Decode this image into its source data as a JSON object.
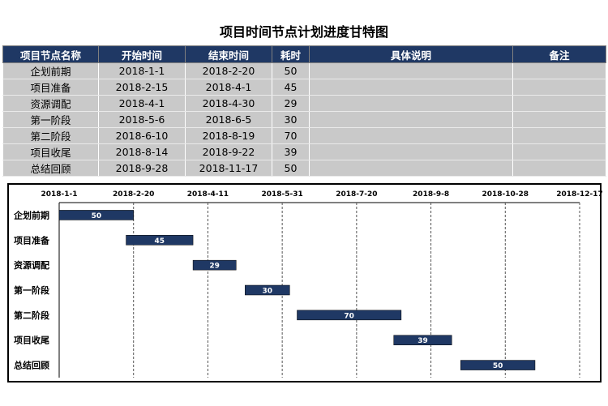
{
  "title": "项目时间节点计划进度甘特图",
  "table": {
    "headers": [
      "项目节点名称",
      "开始时间",
      "结束时间",
      "耗时",
      "具体说明",
      "备注"
    ],
    "rows": [
      [
        "企划前期",
        "2018-1-1",
        "2018-2-20",
        "50",
        "",
        ""
      ],
      [
        "项目准备",
        "2018-2-15",
        "2018-4-1",
        "45",
        "",
        ""
      ],
      [
        "资源调配",
        "2018-4-1",
        "2018-4-30",
        "29",
        "",
        ""
      ],
      [
        "第一阶段",
        "2018-5-6",
        "2018-6-5",
        "30",
        "",
        ""
      ],
      [
        "第二阶段",
        "2018-6-10",
        "2018-8-19",
        "70",
        "",
        ""
      ],
      [
        "项目收尾",
        "2018-8-14",
        "2018-9-22",
        "39",
        "",
        ""
      ],
      [
        "总结回顾",
        "2018-9-28",
        "2018-11-17",
        "50",
        "",
        ""
      ]
    ]
  },
  "chart_data": {
    "type": "bar",
    "orientation": "horizontal-gantt",
    "title": "",
    "categories": [
      "企划前期",
      "项目准备",
      "资源调配",
      "第一阶段",
      "第二阶段",
      "项目收尾",
      "总结回顾"
    ],
    "start": [
      "2018-1-1",
      "2018-2-15",
      "2018-4-1",
      "2018-5-6",
      "2018-6-10",
      "2018-8-14",
      "2018-9-28"
    ],
    "values": [
      50,
      45,
      29,
      30,
      70,
      39,
      50
    ],
    "x_ticks": [
      "2018-1-1",
      "2018-2-20",
      "2018-4-11",
      "2018-5-31",
      "2018-7-20",
      "2018-9-8",
      "2018-10-28",
      "2018-12-17"
    ],
    "xlim": [
      "2018-1-1",
      "2018-12-17"
    ],
    "x_axis_position": "top",
    "grid": "vertical-dashed",
    "bar_color": "#1f3864",
    "label_color": "#ffffff"
  }
}
